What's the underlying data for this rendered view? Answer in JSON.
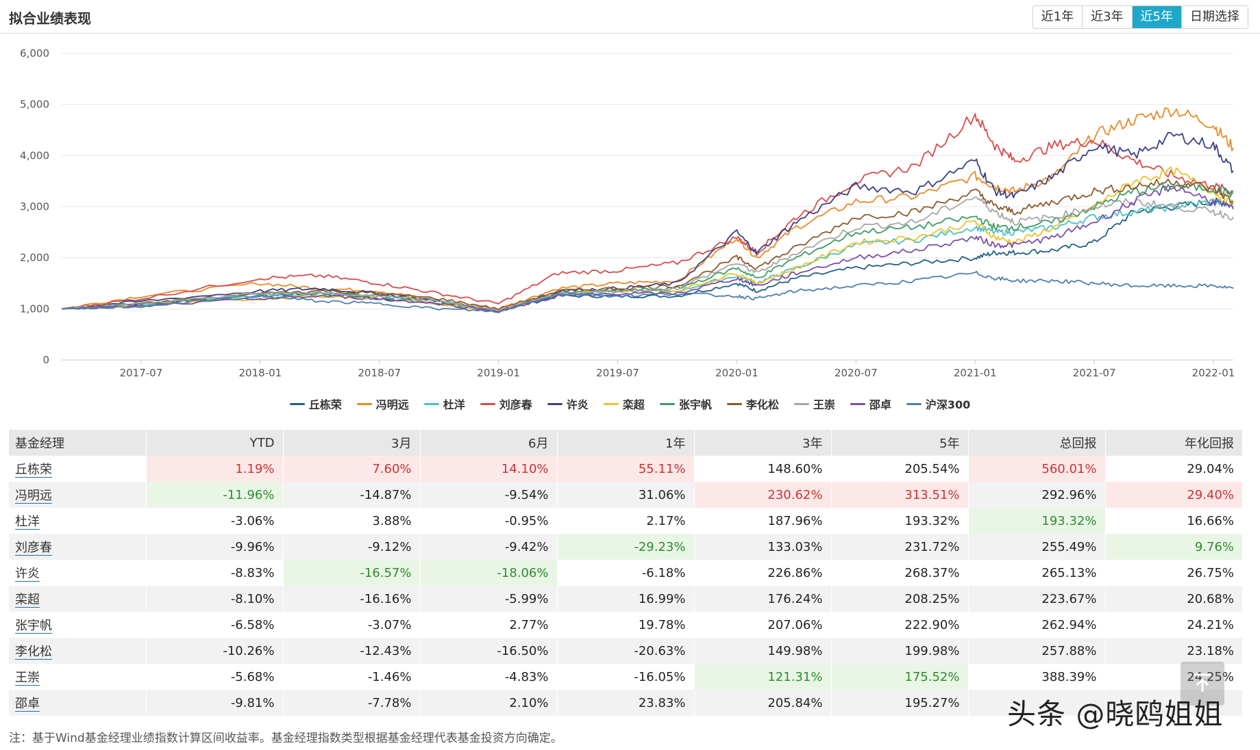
{
  "header": {
    "title": "拟合业绩表现",
    "ranges": [
      "近1年",
      "近3年",
      "近5年",
      "日期选择"
    ],
    "active_range": "近5年"
  },
  "chart_data": {
    "type": "line",
    "y_ticks": [
      "6,000",
      "5,000",
      "4,000",
      "3,000",
      "2,000",
      "1,000",
      "0"
    ],
    "x_ticks": [
      "2017-07",
      "2018-01",
      "2018-07",
      "2019-01",
      "2019-07",
      "2020-01",
      "2020-07",
      "2021-01",
      "2021-07",
      "2022-01"
    ],
    "ylim": [
      0,
      6000
    ],
    "x": [
      "2017-03",
      "2017-07",
      "2018-01",
      "2018-04",
      "2018-07",
      "2018-10",
      "2019-01",
      "2019-04",
      "2019-07",
      "2019-10",
      "2020-01",
      "2020-02",
      "2020-04",
      "2020-07",
      "2020-10",
      "2021-01",
      "2021-02",
      "2021-03",
      "2021-05",
      "2021-07",
      "2021-09",
      "2021-11",
      "2022-01",
      "2022-02"
    ],
    "series": [
      {
        "name": "丘栋荣",
        "color": "#1f5f86",
        "values": [
          1000,
          1100,
          1250,
          1300,
          1200,
          1100,
          950,
          1250,
          1250,
          1250,
          1500,
          1350,
          1600,
          1800,
          1900,
          2000,
          2100,
          2100,
          2150,
          2300,
          2900,
          3000,
          3100,
          3050
        ]
      },
      {
        "name": "冯明远",
        "color": "#e8892a",
        "values": [
          1000,
          1250,
          1500,
          1400,
          1350,
          1150,
          1000,
          1400,
          1500,
          1550,
          2400,
          2000,
          2600,
          3100,
          3200,
          3600,
          3400,
          3300,
          3600,
          4400,
          4700,
          4900,
          4600,
          4150
        ]
      },
      {
        "name": "杜洋",
        "color": "#4bbfc1",
        "values": [
          1000,
          1050,
          1250,
          1300,
          1250,
          1150,
          950,
          1300,
          1350,
          1350,
          1650,
          1500,
          1800,
          2250,
          2350,
          2600,
          2500,
          2500,
          2600,
          2800,
          2900,
          3000,
          3100,
          3000
        ]
      },
      {
        "name": "刘彦春",
        "color": "#d94a4a",
        "values": [
          1000,
          1200,
          1600,
          1650,
          1500,
          1300,
          1100,
          1700,
          1750,
          1900,
          2400,
          2100,
          2800,
          3500,
          3800,
          4800,
          4200,
          3900,
          4200,
          4300,
          3900,
          3600,
          3400,
          3300
        ]
      },
      {
        "name": "许炎",
        "color": "#3a3f82",
        "values": [
          1000,
          1150,
          1350,
          1400,
          1300,
          1150,
          950,
          1350,
          1400,
          1500,
          2500,
          2100,
          2700,
          3400,
          3300,
          3900,
          3300,
          3200,
          3600,
          4200,
          4000,
          4400,
          4200,
          3700
        ]
      },
      {
        "name": "栾超",
        "color": "#e8c230",
        "values": [
          1000,
          1050,
          1200,
          1250,
          1200,
          1100,
          950,
          1300,
          1350,
          1350,
          1700,
          1500,
          1800,
          2300,
          2400,
          2700,
          2400,
          2300,
          2600,
          3000,
          3500,
          3700,
          3300,
          3050
        ]
      },
      {
        "name": "张宇帆",
        "color": "#3f9a64",
        "values": [
          1000,
          1100,
          1300,
          1300,
          1250,
          1150,
          950,
          1300,
          1350,
          1400,
          1800,
          1600,
          2000,
          2500,
          2600,
          2800,
          2600,
          2600,
          2700,
          3000,
          3300,
          3400,
          3350,
          3250
        ]
      },
      {
        "name": "李化松",
        "color": "#8b5a2b",
        "values": [
          1000,
          1100,
          1300,
          1350,
          1300,
          1200,
          1000,
          1350,
          1400,
          1450,
          2000,
          1800,
          2200,
          2800,
          2900,
          3300,
          3000,
          2900,
          3100,
          3300,
          3400,
          3500,
          3350,
          3100
        ]
      },
      {
        "name": "王崇",
        "color": "#a6a6a6",
        "values": [
          1000,
          1100,
          1300,
          1300,
          1250,
          1150,
          950,
          1300,
          1350,
          1400,
          1900,
          1700,
          2100,
          2600,
          2700,
          3200,
          2900,
          2700,
          2800,
          3000,
          3100,
          3000,
          2900,
          2800
        ]
      },
      {
        "name": "邵卓",
        "color": "#7a4eab",
        "values": [
          1000,
          1050,
          1200,
          1250,
          1200,
          1100,
          950,
          1250,
          1300,
          1300,
          1600,
          1450,
          1700,
          2000,
          2150,
          2400,
          2250,
          2250,
          2400,
          2700,
          3100,
          3400,
          3100,
          2950
        ]
      },
      {
        "name": "沪深300",
        "color": "#4d7fad",
        "values": [
          1000,
          1050,
          1250,
          1150,
          1100,
          1000,
          950,
          1300,
          1250,
          1300,
          1250,
          1200,
          1350,
          1450,
          1550,
          1700,
          1600,
          1550,
          1550,
          1500,
          1450,
          1450,
          1450,
          1400
        ]
      }
    ]
  },
  "table": {
    "headers": [
      "基金经理",
      "YTD",
      "3月",
      "6月",
      "1年",
      "3年",
      "5年",
      "总回报",
      "年化回报"
    ],
    "rows": [
      {
        "name": "丘栋荣",
        "vals": [
          "1.19%",
          "7.60%",
          "14.10%",
          "55.11%",
          "148.60%",
          "205.54%",
          "560.01%",
          "29.04%"
        ],
        "hl": [
          "r",
          "r",
          "r",
          "r",
          "",
          "",
          "r",
          ""
        ]
      },
      {
        "name": "冯明远",
        "vals": [
          "-11.96%",
          "-14.87%",
          "-9.54%",
          "31.06%",
          "230.62%",
          "313.51%",
          "292.96%",
          "29.40%"
        ],
        "hl": [
          "g",
          "",
          "",
          "",
          "r",
          "r",
          "",
          "r"
        ]
      },
      {
        "name": "杜洋",
        "vals": [
          "-3.06%",
          "3.88%",
          "-0.95%",
          "2.17%",
          "187.96%",
          "193.32%",
          "193.32%",
          "16.66%"
        ],
        "hl": [
          "",
          "",
          "",
          "",
          "",
          "",
          "g",
          ""
        ]
      },
      {
        "name": "刘彦春",
        "vals": [
          "-9.96%",
          "-9.12%",
          "-9.42%",
          "-29.23%",
          "133.03%",
          "231.72%",
          "255.49%",
          "9.76%"
        ],
        "hl": [
          "",
          "",
          "",
          "g",
          "",
          "",
          "",
          "g"
        ]
      },
      {
        "name": "许炎",
        "vals": [
          "-8.83%",
          "-16.57%",
          "-18.06%",
          "-6.18%",
          "226.86%",
          "268.37%",
          "265.13%",
          "26.75%"
        ],
        "hl": [
          "",
          "g",
          "g",
          "",
          "",
          "",
          "",
          ""
        ]
      },
      {
        "name": "栾超",
        "vals": [
          "-8.10%",
          "-16.16%",
          "-5.99%",
          "16.99%",
          "176.24%",
          "208.25%",
          "223.67%",
          "20.68%"
        ],
        "hl": [
          "",
          "",
          "",
          "",
          "",
          "",
          "",
          ""
        ]
      },
      {
        "name": "张宇帆",
        "vals": [
          "-6.58%",
          "-3.07%",
          "2.77%",
          "19.78%",
          "207.06%",
          "222.90%",
          "262.94%",
          "24.21%"
        ],
        "hl": [
          "",
          "",
          "",
          "",
          "",
          "",
          "",
          ""
        ]
      },
      {
        "name": "李化松",
        "vals": [
          "-10.26%",
          "-12.43%",
          "-16.50%",
          "-20.63%",
          "149.98%",
          "199.98%",
          "257.88%",
          "23.18%"
        ],
        "hl": [
          "",
          "",
          "",
          "",
          "",
          "",
          "",
          ""
        ]
      },
      {
        "name": "王崇",
        "vals": [
          "-5.68%",
          "-1.46%",
          "-4.83%",
          "-16.05%",
          "121.31%",
          "175.52%",
          "388.39%",
          "24.25%"
        ],
        "hl": [
          "",
          "",
          "",
          "",
          "g",
          "g",
          "",
          ""
        ]
      },
      {
        "name": "邵卓",
        "vals": [
          "-9.81%",
          "-7.78%",
          "2.10%",
          "23.83%",
          "205.84%",
          "195.27%",
          "",
          ""
        ],
        "hl": [
          "",
          "",
          "",
          "",
          "",
          "",
          "",
          ""
        ]
      }
    ]
  },
  "note": "注：基于Wind基金经理业绩指数计算区间收益率。基金经理指数类型根据基金经理代表基金投资方向确定。",
  "watermark": "头条 @晓鸥姐姐"
}
